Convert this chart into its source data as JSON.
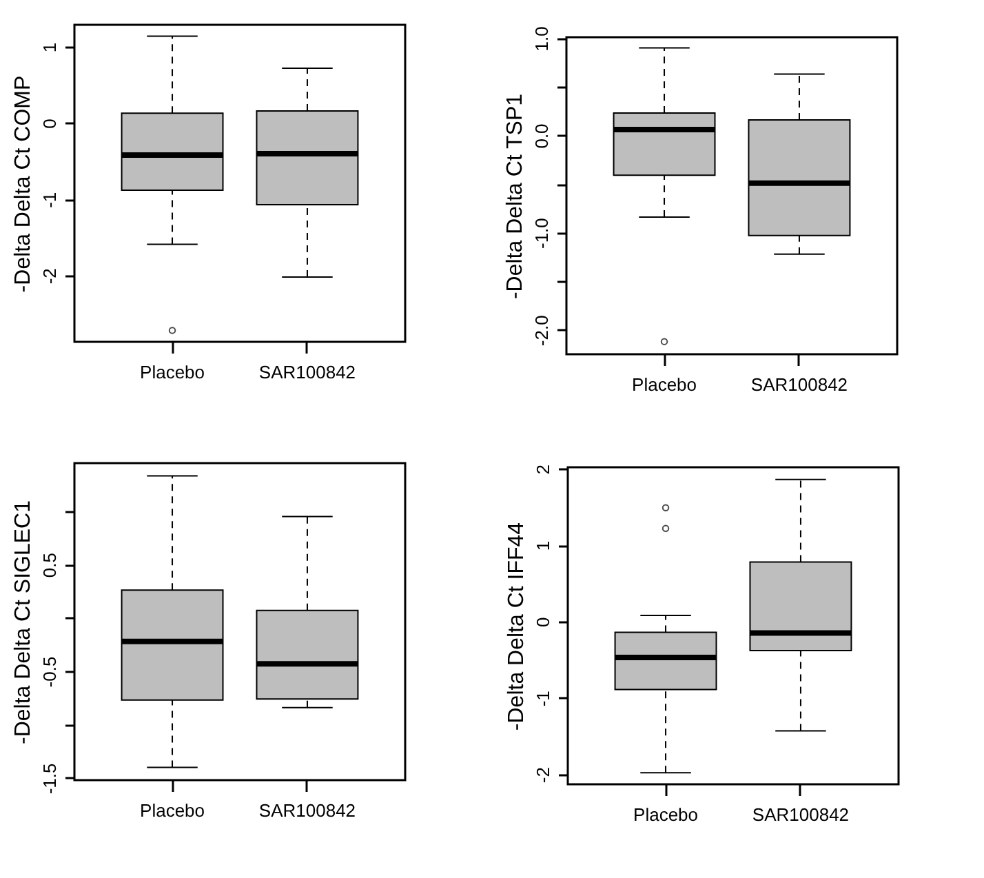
{
  "chart_data": [
    {
      "type": "box",
      "ylabel": "-Delta Delta Ct COMP",
      "categories": [
        "Placebo",
        "SAR100842"
      ],
      "boxes": [
        {
          "low": -1.59,
          "q1": -0.88,
          "median": -0.42,
          "q3": 0.13,
          "high": 1.14,
          "outliers": [
            -2.72
          ]
        },
        {
          "low": -2.02,
          "q1": -1.07,
          "median": -0.4,
          "q3": 0.16,
          "high": 0.72
        }
      ],
      "ylim": [
        -2.87,
        1.29
      ],
      "yticks": [
        -2,
        -1,
        0,
        1
      ]
    },
    {
      "type": "box",
      "ylabel": "-Delta Delta Ct TSP1",
      "categories": [
        "Placebo",
        "SAR100842"
      ],
      "boxes": [
        {
          "low": -0.84,
          "q1": -0.41,
          "median": 0.06,
          "q3": 0.23,
          "high": 0.9,
          "outliers": [
            -2.12
          ]
        },
        {
          "low": -1.22,
          "q1": -1.03,
          "median": -0.49,
          "q3": 0.16,
          "high": 0.63
        }
      ],
      "ylim": [
        -2.25,
        1.01
      ],
      "yticks": [
        {
          "value": -2,
          "label": "-2.0"
        },
        {
          "value": -1.5,
          "label": null
        },
        {
          "value": -1,
          "label": "-1.0"
        },
        {
          "value": -0.5,
          "label": null
        },
        {
          "value": 0,
          "label": "0.0"
        },
        {
          "value": 0.5,
          "label": null
        },
        {
          "value": 1,
          "label": "1.0"
        }
      ]
    },
    {
      "type": "box",
      "ylabel": "-Delta Delta Ct SIGLEC1",
      "categories": [
        "Placebo",
        "SAR100842"
      ],
      "boxes": [
        {
          "low": -1.4,
          "q1": -0.77,
          "median": -0.22,
          "q3": 0.26,
          "high": 1.33
        },
        {
          "low": -0.84,
          "q1": -0.76,
          "median": -0.43,
          "q3": 0.07,
          "high": 0.95
        }
      ],
      "ylim": [
        -1.52,
        1.45
      ],
      "yticks": [
        {
          "value": -1.5,
          "label": "-1.5"
        },
        {
          "value": -1,
          "label": null
        },
        {
          "value": -0.5,
          "label": "-0.5"
        },
        {
          "value": 0,
          "label": null
        },
        {
          "value": 0.5,
          "label": "0.5"
        },
        {
          "value": 1,
          "label": null
        }
      ]
    },
    {
      "type": "box",
      "ylabel": "-Delta Delta Ct IFF44",
      "categories": [
        "Placebo",
        "SAR100842"
      ],
      "boxes": [
        {
          "low": -1.98,
          "q1": -0.89,
          "median": -0.47,
          "q3": -0.14,
          "high": 0.08,
          "outliers": [
            1.22,
            1.49
          ]
        },
        {
          "low": -1.43,
          "q1": -0.38,
          "median": -0.15,
          "q3": 0.78,
          "high": 1.86
        }
      ],
      "ylim": [
        -2.13,
        2.02
      ],
      "yticks": [
        -2,
        -1,
        0,
        1,
        2
      ]
    }
  ]
}
